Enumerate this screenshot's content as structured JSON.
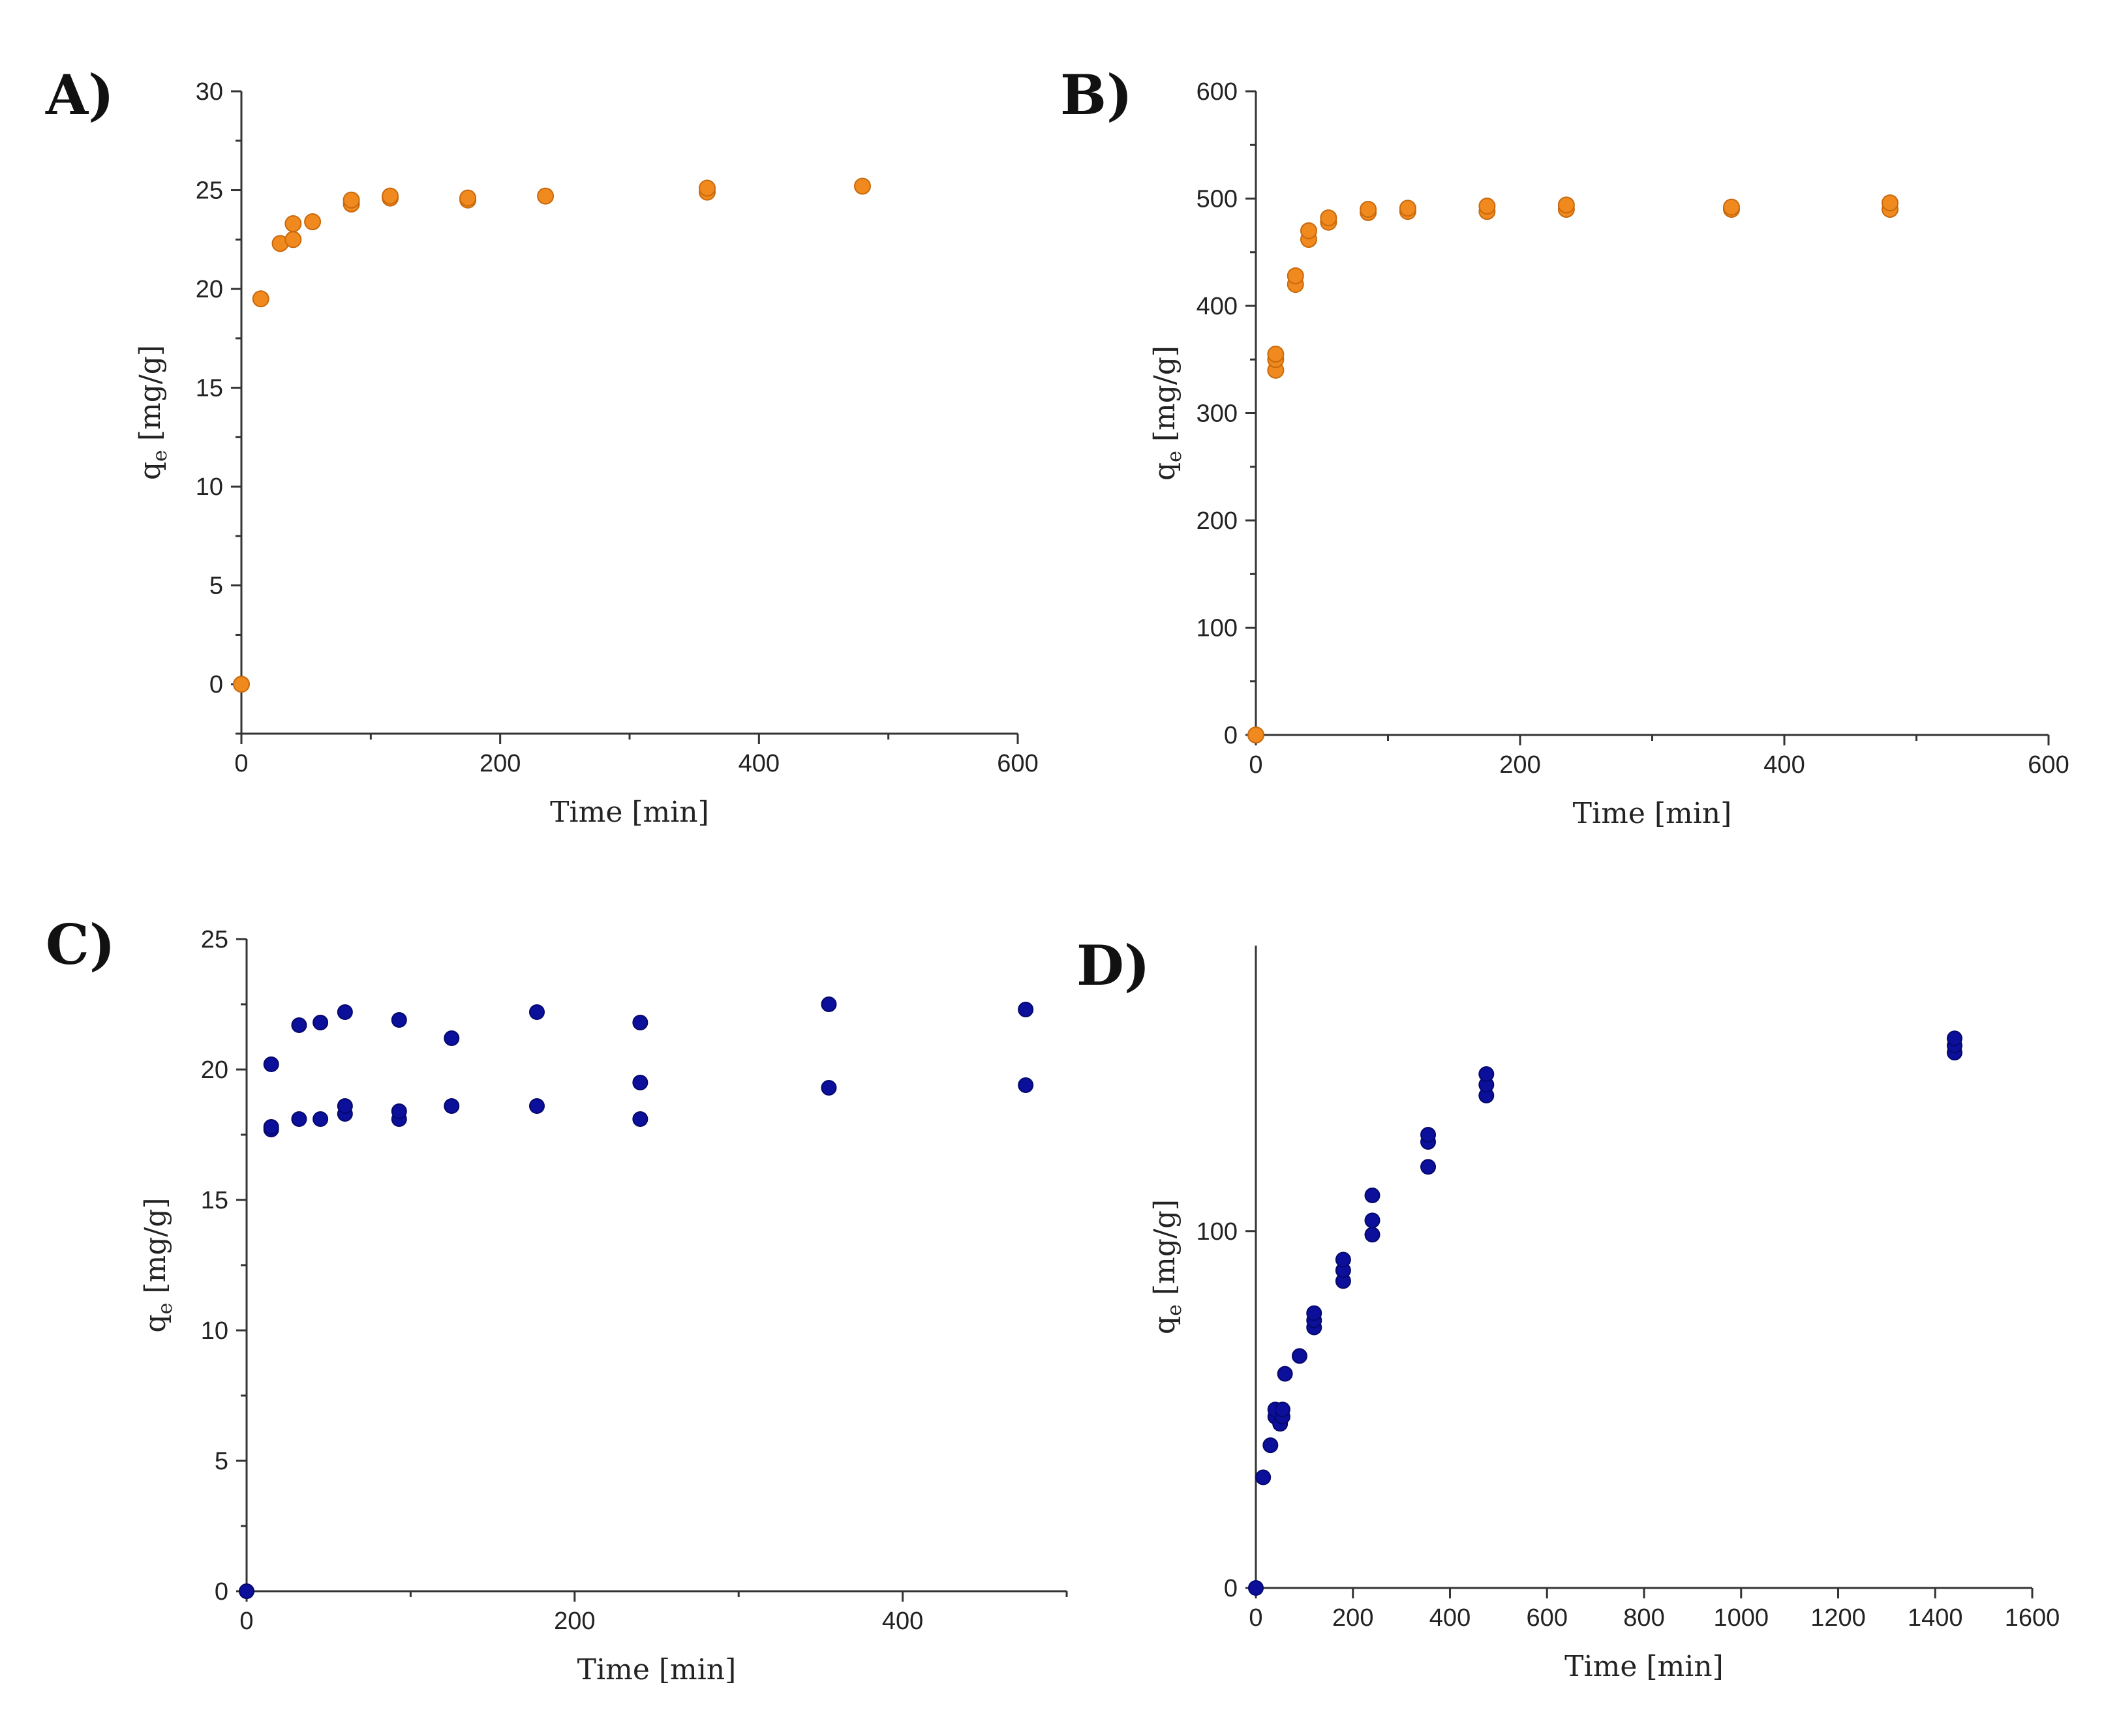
{
  "figure_title": "",
  "chart_data": [
    {
      "panel": "A)",
      "type": "scatter",
      "title": "",
      "xlabel": "Time [min]",
      "ylabel_main": "q",
      "ylabel_sub": "e",
      "ylabel_unit": " [mg/g]",
      "xlim": [
        0,
        600
      ],
      "ylim": [
        -2.5,
        30
      ],
      "xticks": [
        0,
        200,
        400,
        600
      ],
      "xminor": [
        100,
        300,
        500
      ],
      "yticks": [
        0,
        5,
        10,
        15,
        20,
        25,
        30
      ],
      "yminor": [
        -2.5,
        2.5,
        7.5,
        12.5,
        17.5,
        22.5,
        27.5
      ],
      "color": "#f08a1e",
      "edge": "#c9690c",
      "marker_size": 12,
      "points": [
        [
          0,
          0
        ],
        [
          15,
          19.5
        ],
        [
          30,
          22.3
        ],
        [
          40,
          22.5
        ],
        [
          40,
          23.3
        ],
        [
          55,
          23.4
        ],
        [
          85,
          24.3
        ],
        [
          85,
          24.5
        ],
        [
          115,
          24.6
        ],
        [
          115,
          24.7
        ],
        [
          175,
          24.5
        ],
        [
          175,
          24.6
        ],
        [
          235,
          24.7
        ],
        [
          360,
          24.9
        ],
        [
          360,
          25.1
        ],
        [
          480,
          25.2
        ]
      ]
    },
    {
      "panel": "B)",
      "type": "scatter",
      "title": "",
      "xlabel": "Time [min]",
      "ylabel_main": "q",
      "ylabel_sub": "e",
      "ylabel_unit": " [mg/g]",
      "xlim": [
        0,
        600
      ],
      "ylim": [
        0,
        600
      ],
      "xticks": [
        0,
        200,
        400,
        600
      ],
      "xminor": [
        100,
        300,
        500
      ],
      "yticks": [
        0,
        100,
        200,
        300,
        400,
        500,
        600
      ],
      "yminor": [
        50,
        150,
        250,
        350,
        450,
        550
      ],
      "color": "#f08a1e",
      "edge": "#c9690c",
      "marker_size": 12,
      "points": [
        [
          0,
          0
        ],
        [
          15,
          340
        ],
        [
          15,
          350
        ],
        [
          15,
          355
        ],
        [
          30,
          420
        ],
        [
          30,
          428
        ],
        [
          40,
          462
        ],
        [
          40,
          470
        ],
        [
          55,
          478
        ],
        [
          55,
          482
        ],
        [
          85,
          487
        ],
        [
          85,
          490
        ],
        [
          115,
          488
        ],
        [
          115,
          491
        ],
        [
          175,
          488
        ],
        [
          175,
          493
        ],
        [
          235,
          490
        ],
        [
          235,
          494
        ],
        [
          360,
          490
        ],
        [
          360,
          492
        ],
        [
          480,
          490
        ],
        [
          480,
          496
        ]
      ]
    },
    {
      "panel": "C)",
      "type": "scatter",
      "title": "",
      "xlabel": "Time [min]",
      "ylabel_main": "q",
      "ylabel_sub": "e",
      "ylabel_unit": " [mg/g]",
      "xlim": [
        0,
        500
      ],
      "ylim": [
        0,
        25
      ],
      "xticks": [
        0,
        200,
        400
      ],
      "xminor": [
        100,
        300,
        500
      ],
      "yticks": [
        0,
        5,
        10,
        15,
        20,
        25
      ],
      "yminor": [
        2.5,
        7.5,
        12.5,
        17.5,
        22.5
      ],
      "color": "#0b0f9a",
      "edge": "#05086b",
      "marker_size": 11,
      "points": [
        [
          0,
          0
        ],
        [
          15,
          17.7
        ],
        [
          15,
          17.8
        ],
        [
          15,
          20.2
        ],
        [
          32,
          18.1
        ],
        [
          32,
          21.7
        ],
        [
          45,
          18.1
        ],
        [
          45,
          21.8
        ],
        [
          60,
          18.3
        ],
        [
          60,
          18.6
        ],
        [
          60,
          22.2
        ],
        [
          93,
          18.1
        ],
        [
          93,
          18.4
        ],
        [
          93,
          21.9
        ],
        [
          125,
          18.6
        ],
        [
          125,
          21.2
        ],
        [
          177,
          18.6
        ],
        [
          177,
          22.2
        ],
        [
          240,
          18.1
        ],
        [
          240,
          19.5
        ],
        [
          240,
          21.8
        ],
        [
          355,
          19.3
        ],
        [
          355,
          22.5
        ],
        [
          475,
          19.4
        ],
        [
          475,
          22.3
        ]
      ]
    },
    {
      "panel": "D)",
      "type": "scatter",
      "title": "",
      "xlabel": "Time [min]",
      "ylabel_main": "q",
      "ylabel_sub": "e",
      "ylabel_unit": " [mg/g]",
      "xlim": [
        0,
        1600
      ],
      "ylim": [
        0,
        180
      ],
      "xticks": [
        0,
        200,
        400,
        600,
        800,
        1000,
        1200,
        1400,
        1600
      ],
      "xminor": [],
      "yticks": [
        0,
        100
      ],
      "yminor": [],
      "color": "#0b0f9a",
      "edge": "#05086b",
      "marker_size": 11,
      "points": [
        [
          0,
          0
        ],
        [
          15,
          31
        ],
        [
          30,
          40
        ],
        [
          40,
          48
        ],
        [
          40,
          50
        ],
        [
          50,
          46
        ],
        [
          55,
          48
        ],
        [
          55,
          50
        ],
        [
          60,
          60
        ],
        [
          90,
          65
        ],
        [
          120,
          73
        ],
        [
          120,
          75
        ],
        [
          120,
          77
        ],
        [
          180,
          86
        ],
        [
          180,
          89
        ],
        [
          180,
          92
        ],
        [
          240,
          99
        ],
        [
          240,
          103
        ],
        [
          240,
          110
        ],
        [
          355,
          118
        ],
        [
          355,
          125
        ],
        [
          355,
          127
        ],
        [
          475,
          138
        ],
        [
          475,
          141
        ],
        [
          475,
          144
        ],
        [
          1440,
          150
        ],
        [
          1440,
          152
        ],
        [
          1440,
          154
        ]
      ]
    }
  ]
}
